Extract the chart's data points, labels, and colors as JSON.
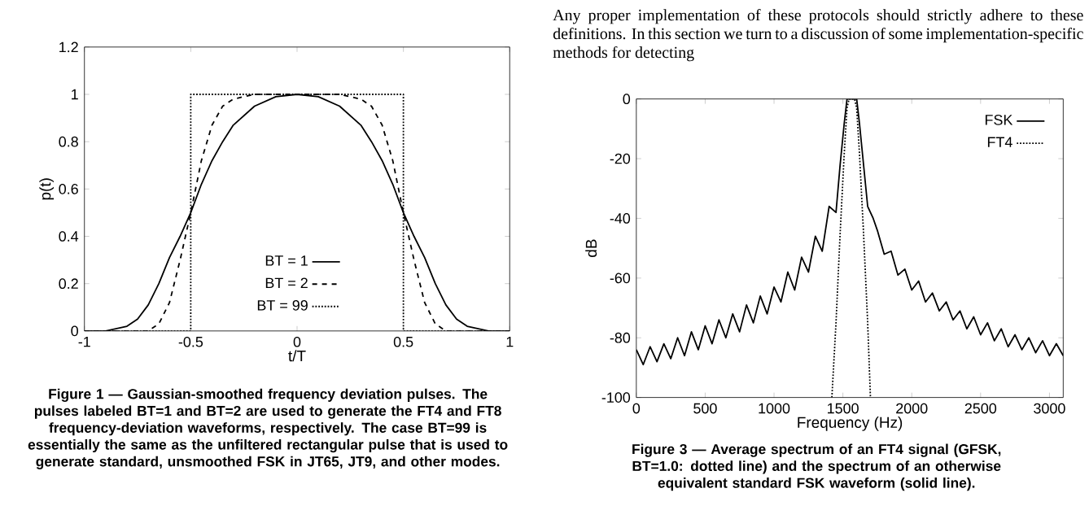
{
  "chart_data": [
    {
      "type": "line",
      "xlabel": "t/T",
      "ylabel": "p(t)",
      "xlim": [
        -1,
        1
      ],
      "ylim": [
        0,
        1.2
      ],
      "xticks": [
        -1,
        -0.5,
        0,
        0.5,
        1
      ],
      "yticks": [
        0,
        0.2,
        0.4,
        0.6,
        0.8,
        1,
        1.2
      ],
      "legend": "bottom",
      "annotations": [
        "Figure 1 — Gaussian-smoothed frequency deviation pulses. The pulses labeled BT=1 and BT=2 are used to generate the FT4 and FT8 frequency-deviation waveforms, respectively. The case BT=99 is essentially the same as the unfiltered rectangular pulse that is used to generate standard, unsmoothed FSK in JT65, JT9, and other modes."
      ],
      "series": [
        {
          "name": "BT = 1",
          "color": "#000000",
          "line_style": "solid",
          "x": [
            -1,
            -0.9,
            -0.8,
            -0.75,
            -0.7,
            -0.65,
            -0.6,
            -0.55,
            -0.5,
            -0.45,
            -0.4,
            -0.35,
            -0.3,
            -0.2,
            -0.1,
            0,
            0.1,
            0.2,
            0.3,
            0.35,
            0.4,
            0.45,
            0.5,
            0.55,
            0.6,
            0.65,
            0.7,
            0.75,
            0.8,
            0.9,
            1
          ],
          "values": [
            0,
            0.0,
            0.02,
            0.05,
            0.11,
            0.2,
            0.31,
            0.4,
            0.5,
            0.62,
            0.72,
            0.8,
            0.87,
            0.95,
            0.99,
            1,
            0.99,
            0.95,
            0.87,
            0.8,
            0.72,
            0.62,
            0.5,
            0.4,
            0.31,
            0.2,
            0.11,
            0.05,
            0.02,
            0.0,
            0
          ]
        },
        {
          "name": "BT = 2",
          "color": "#000000",
          "line_style": "dashed",
          "x": [
            -1,
            -0.7,
            -0.65,
            -0.6,
            -0.55,
            -0.5,
            -0.45,
            -0.4,
            -0.35,
            -0.3,
            -0.2,
            0,
            0.2,
            0.3,
            0.35,
            0.4,
            0.45,
            0.5,
            0.55,
            0.6,
            0.65,
            0.7,
            1
          ],
          "values": [
            0,
            0.0,
            0.03,
            0.12,
            0.3,
            0.5,
            0.72,
            0.87,
            0.95,
            0.98,
            1,
            1,
            1,
            0.98,
            0.95,
            0.87,
            0.72,
            0.5,
            0.3,
            0.12,
            0.03,
            0.0,
            0
          ]
        },
        {
          "name": "BT = 99",
          "color": "#000000",
          "line_style": "dotted",
          "x": [
            -1,
            -0.5,
            -0.5,
            0.5,
            0.5,
            1
          ],
          "values": [
            0,
            0,
            1,
            1,
            0,
            0
          ]
        }
      ]
    },
    {
      "type": "line",
      "xlabel": "Frequency (Hz)",
      "ylabel": "dB",
      "xlim": [
        0,
        3100
      ],
      "ylim": [
        -100,
        0
      ],
      "xticks": [
        0,
        500,
        1000,
        1500,
        2000,
        2500,
        3000
      ],
      "yticks": [
        -100,
        -80,
        -60,
        -40,
        -20,
        0
      ],
      "legend": "top right",
      "annotations": [
        "Any proper implementation of these protocols should strictly adhere to these definitions. In this section we turn to a discussion of some implementation-specific methods for detecting",
        "Figure 3 — Average spectrum of an FT4 signal (GFSK, BT=1.0: dotted line) and the spectrum of an otherwise equivalent standard FSK waveform (solid line)."
      ],
      "series": [
        {
          "name": "FSK",
          "color": "#000000",
          "line_style": "solid",
          "x": [
            0,
            50,
            100,
            150,
            200,
            250,
            300,
            350,
            400,
            450,
            500,
            550,
            600,
            650,
            700,
            750,
            800,
            850,
            900,
            950,
            1000,
            1050,
            1100,
            1150,
            1200,
            1250,
            1300,
            1350,
            1400,
            1450,
            1480,
            1510,
            1530,
            1600,
            1620,
            1650,
            1680,
            1720,
            1750,
            1800,
            1850,
            1900,
            1950,
            2000,
            2050,
            2100,
            2150,
            2200,
            2250,
            2300,
            2350,
            2400,
            2450,
            2500,
            2550,
            2600,
            2650,
            2700,
            2750,
            2800,
            2850,
            2900,
            2950,
            3000,
            3050,
            3100
          ],
          "values": [
            -84,
            -89,
            -83,
            -88,
            -82,
            -87,
            -80,
            -86,
            -78,
            -84,
            -76,
            -82,
            -74,
            -80,
            -72,
            -78,
            -69,
            -75,
            -66,
            -72,
            -63,
            -68,
            -58,
            -64,
            -53,
            -58,
            -46,
            -51,
            -36,
            -38,
            -22,
            -8,
            0,
            0,
            -8,
            -22,
            -36,
            -40,
            -44,
            -52,
            -51,
            -59,
            -57,
            -64,
            -61,
            -68,
            -65,
            -71,
            -68,
            -74,
            -71,
            -77,
            -73,
            -79,
            -75,
            -81,
            -77,
            -83,
            -79,
            -84,
            -80,
            -85,
            -81,
            -86,
            -82,
            -86
          ]
        },
        {
          "name": "FT4",
          "color": "#000000",
          "line_style": "dotted",
          "x": [
            1420,
            1450,
            1480,
            1510,
            1530,
            1545,
            1585,
            1600,
            1620,
            1650,
            1680,
            1700
          ],
          "values": [
            -100,
            -75,
            -45,
            -18,
            -3,
            0,
            0,
            -3,
            -18,
            -45,
            -75,
            -100
          ]
        }
      ]
    }
  ]
}
